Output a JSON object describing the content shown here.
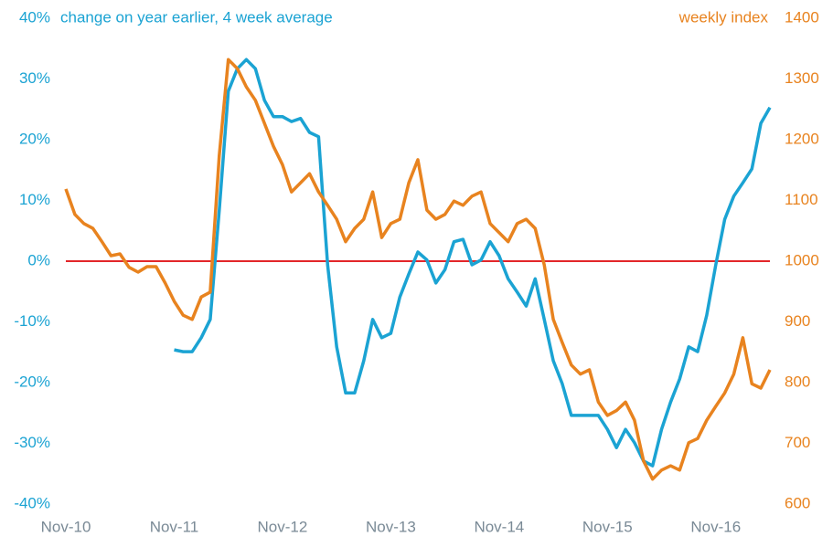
{
  "chart_data": {
    "type": "line",
    "x": [
      0,
      1,
      2,
      3,
      4,
      5,
      6,
      7,
      8,
      9,
      10,
      11,
      12,
      13,
      14,
      15,
      16,
      17,
      18,
      19,
      20,
      21,
      22,
      23,
      24,
      25,
      26,
      27,
      28,
      29,
      30,
      31,
      32,
      33,
      34,
      35,
      36,
      37,
      38,
      39,
      40,
      41,
      42,
      43,
      44,
      45,
      46,
      47,
      48,
      49,
      50,
      51,
      52,
      53,
      54,
      55,
      56,
      57,
      58,
      59,
      60,
      61,
      62,
      63,
      64,
      65,
      66,
      67,
      68,
      69,
      70,
      71,
      72,
      73,
      74,
      75,
      76,
      77,
      78
    ],
    "xlim": [
      0,
      78
    ],
    "xticks": [
      {
        "value": 0,
        "label": "Nov-10"
      },
      {
        "value": 12,
        "label": "Nov-11"
      },
      {
        "value": 24,
        "label": "Nov-12"
      },
      {
        "value": 36,
        "label": "Nov-13"
      },
      {
        "value": 48,
        "label": "Nov-14"
      },
      {
        "value": 60,
        "label": "Nov-15"
      },
      {
        "value": 72,
        "label": "Nov-16"
      }
    ],
    "ylim": [
      -40,
      40
    ],
    "yticks": [
      {
        "value": -40,
        "label": "-40%"
      },
      {
        "value": -30,
        "label": "-30%"
      },
      {
        "value": -20,
        "label": "-20%"
      },
      {
        "value": -10,
        "label": "-10%"
      },
      {
        "value": 0,
        "label": "0%"
      },
      {
        "value": 10,
        "label": "10%"
      },
      {
        "value": 20,
        "label": "20%"
      },
      {
        "value": 30,
        "label": "30%"
      },
      {
        "value": 40,
        "label": "40%"
      }
    ],
    "y2lim": [
      600,
      1400
    ],
    "y2ticks": [
      600,
      700,
      800,
      900,
      1000,
      1100,
      1200,
      1300,
      1400
    ],
    "reference_line": {
      "value": 0,
      "color": "#e3262a"
    },
    "series": [
      {
        "name": "change on year earlier, 4 week average",
        "color": "#1ba3d3",
        "values": [
          null,
          null,
          null,
          null,
          null,
          null,
          null,
          null,
          null,
          null,
          null,
          null,
          -14.6,
          -14.9,
          -14.9,
          -12.6,
          -9.6,
          8.4,
          28,
          31.7,
          33.2,
          31.7,
          26.5,
          23.8,
          23.8,
          23,
          23.5,
          21.2,
          20.5,
          -0.6,
          -14.1,
          -21.7,
          -21.7,
          -16.4,
          -9.6,
          -12.6,
          -11.9,
          -5.9,
          -2.1,
          1.5,
          0.2,
          -3.6,
          -1.4,
          3.2,
          3.6,
          -0.6,
          0.2,
          3.2,
          0.9,
          -2.9,
          -5.1,
          -7.4,
          -2.9,
          -9.6,
          -16.4,
          -20.2,
          -25.4,
          -25.4,
          -25.4,
          -25.4,
          -27.7,
          -30.7,
          -27.7,
          -29.9,
          -32.9,
          -33.7,
          -27.7,
          -23.2,
          -19.4,
          -14.1,
          -14.9,
          -8.9,
          -0.6,
          6.9,
          10.7,
          12.9,
          15.2,
          22.7,
          25.3
        ]
      },
      {
        "name": "weekly index",
        "color": "#e8831f",
        "axis": "y2",
        "values": [
          1119,
          1077,
          1062,
          1054,
          1032,
          1009,
          1012,
          990,
          982,
          991,
          991,
          964,
          934,
          911,
          904,
          941,
          949,
          1174,
          1332,
          1317,
          1287,
          1265,
          1227,
          1189,
          1159,
          1114,
          1129,
          1144,
          1114,
          1092,
          1069,
          1032,
          1054,
          1069,
          1114,
          1039,
          1062,
          1069,
          1129,
          1167,
          1084,
          1069,
          1077,
          1099,
          1092,
          1107,
          1114,
          1062,
          1047,
          1032,
          1062,
          1069,
          1054,
          994,
          904,
          866,
          829,
          814,
          821,
          768,
          746,
          754,
          768,
          738,
          671,
          641,
          656,
          663,
          656,
          701,
          708,
          738,
          761,
          783,
          814,
          874,
          798,
          791,
          821
        ]
      }
    ]
  }
}
